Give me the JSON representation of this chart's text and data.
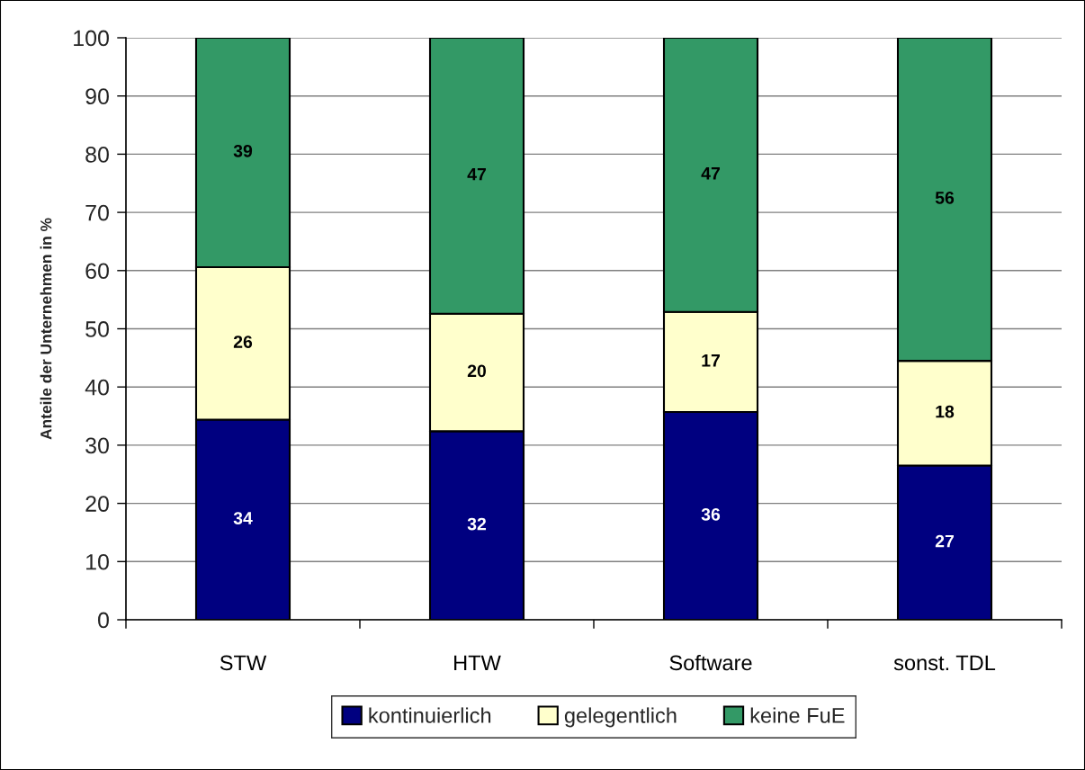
{
  "chart_data": {
    "type": "bar",
    "stacked": true,
    "categories": [
      "STW",
      "HTW",
      "Software",
      "sonst. TDL"
    ],
    "ylabel": "Anteile der Unternehmen in %",
    "ylim": [
      0,
      100
    ],
    "yticks": [
      0,
      10,
      20,
      30,
      40,
      50,
      60,
      70,
      80,
      90,
      100
    ],
    "grid": "y",
    "legend": "bottom",
    "series": [
      {
        "name": "kontinuierlich",
        "color": "#000080",
        "values": [
          34.4,
          32.4,
          35.7,
          26.5
        ],
        "value_labels": [
          "34",
          "32",
          "36",
          "27"
        ]
      },
      {
        "name": "gelegentlich",
        "color": "#ffffcc",
        "values": [
          26.2,
          20.2,
          17.2,
          18.0
        ],
        "value_labels": [
          "26",
          "20",
          "17",
          "18"
        ]
      },
      {
        "name": "keine FuE",
        "color": "#339966",
        "values": [
          39.4,
          47.4,
          47.1,
          55.5
        ],
        "value_labels": [
          "39",
          "47",
          "47",
          "56"
        ]
      }
    ]
  }
}
